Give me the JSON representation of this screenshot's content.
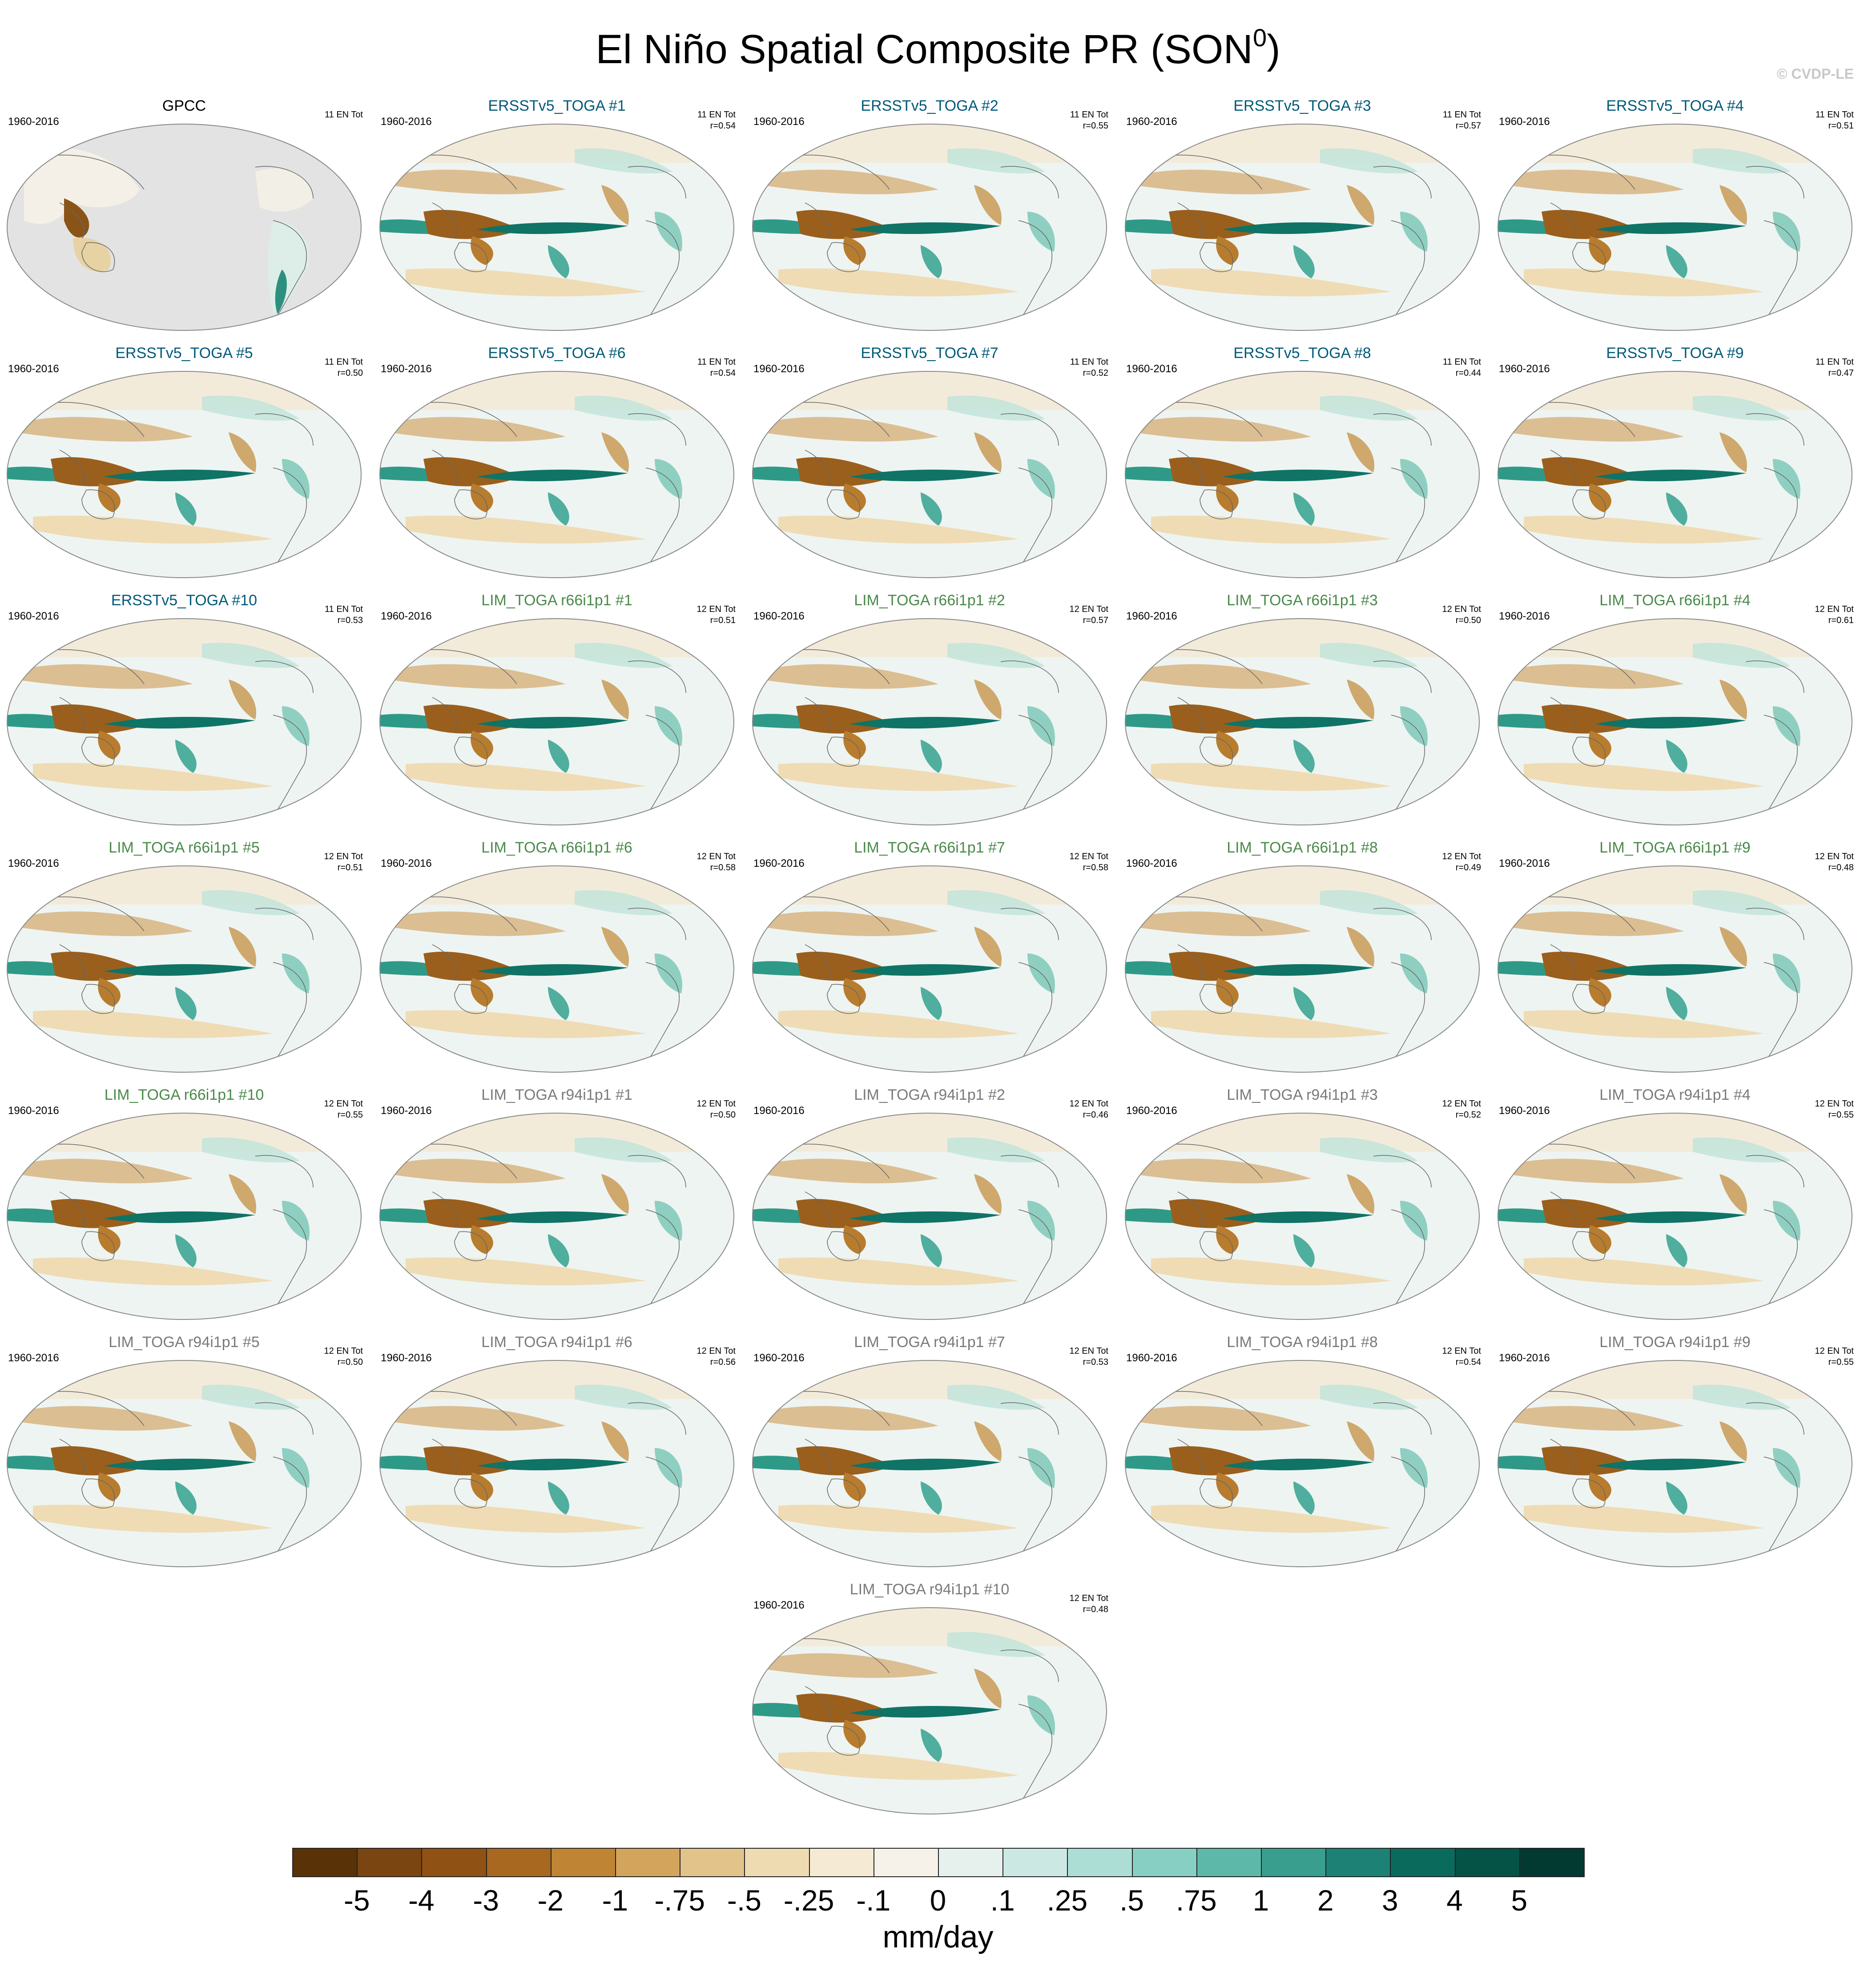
{
  "title": {
    "main": "El Niño Spatial Composite PR (SON",
    "superscript": "0",
    "close": ")"
  },
  "watermark": "© CVDP-LE",
  "colors": {
    "obs_label": "#000000",
    "ersst_label": "#005a78",
    "lim66_label": "#4a8a4a",
    "lim94_label": "#7a7a7a",
    "land_mask": "#e3e3e3"
  },
  "panels": [
    {
      "name": "GPCC",
      "period": "1960-2016",
      "count": "11 EN Tot",
      "r": "",
      "group": "obs"
    },
    {
      "name": "ERSSTv5_TOGA #1",
      "period": "1960-2016",
      "count": "11 EN Tot",
      "r": "r=0.54",
      "group": "ersst"
    },
    {
      "name": "ERSSTv5_TOGA #2",
      "period": "1960-2016",
      "count": "11 EN Tot",
      "r": "r=0.55",
      "group": "ersst"
    },
    {
      "name": "ERSSTv5_TOGA #3",
      "period": "1960-2016",
      "count": "11 EN Tot",
      "r": "r=0.57",
      "group": "ersst"
    },
    {
      "name": "ERSSTv5_TOGA #4",
      "period": "1960-2016",
      "count": "11 EN Tot",
      "r": "r=0.51",
      "group": "ersst"
    },
    {
      "name": "ERSSTv5_TOGA #5",
      "period": "1960-2016",
      "count": "11 EN Tot",
      "r": "r=0.50",
      "group": "ersst"
    },
    {
      "name": "ERSSTv5_TOGA #6",
      "period": "1960-2016",
      "count": "11 EN Tot",
      "r": "r=0.54",
      "group": "ersst"
    },
    {
      "name": "ERSSTv5_TOGA #7",
      "period": "1960-2016",
      "count": "11 EN Tot",
      "r": "r=0.52",
      "group": "ersst"
    },
    {
      "name": "ERSSTv5_TOGA #8",
      "period": "1960-2016",
      "count": "11 EN Tot",
      "r": "r=0.44",
      "group": "ersst"
    },
    {
      "name": "ERSSTv5_TOGA #9",
      "period": "1960-2016",
      "count": "11 EN Tot",
      "r": "r=0.47",
      "group": "ersst"
    },
    {
      "name": "ERSSTv5_TOGA #10",
      "period": "1960-2016",
      "count": "11 EN Tot",
      "r": "r=0.53",
      "group": "ersst"
    },
    {
      "name": "LIM_TOGA r66i1p1 #1",
      "period": "1960-2016",
      "count": "12 EN Tot",
      "r": "r=0.51",
      "group": "lim66"
    },
    {
      "name": "LIM_TOGA r66i1p1 #2",
      "period": "1960-2016",
      "count": "12 EN Tot",
      "r": "r=0.57",
      "group": "lim66"
    },
    {
      "name": "LIM_TOGA r66i1p1 #3",
      "period": "1960-2016",
      "count": "12 EN Tot",
      "r": "r=0.50",
      "group": "lim66"
    },
    {
      "name": "LIM_TOGA r66i1p1 #4",
      "period": "1960-2016",
      "count": "12 EN Tot",
      "r": "r=0.61",
      "group": "lim66"
    },
    {
      "name": "LIM_TOGA r66i1p1 #5",
      "period": "1960-2016",
      "count": "12 EN Tot",
      "r": "r=0.51",
      "group": "lim66"
    },
    {
      "name": "LIM_TOGA r66i1p1 #6",
      "period": "1960-2016",
      "count": "12 EN Tot",
      "r": "r=0.58",
      "group": "lim66"
    },
    {
      "name": "LIM_TOGA r66i1p1 #7",
      "period": "1960-2016",
      "count": "12 EN Tot",
      "r": "r=0.58",
      "group": "lim66"
    },
    {
      "name": "LIM_TOGA r66i1p1 #8",
      "period": "1960-2016",
      "count": "12 EN Tot",
      "r": "r=0.49",
      "group": "lim66"
    },
    {
      "name": "LIM_TOGA r66i1p1 #9",
      "period": "1960-2016",
      "count": "12 EN Tot",
      "r": "r=0.48",
      "group": "lim66"
    },
    {
      "name": "LIM_TOGA r66i1p1 #10",
      "period": "1960-2016",
      "count": "12 EN Tot",
      "r": "r=0.55",
      "group": "lim66"
    },
    {
      "name": "LIM_TOGA r94i1p1 #1",
      "period": "1960-2016",
      "count": "12 EN Tot",
      "r": "r=0.50",
      "group": "lim94"
    },
    {
      "name": "LIM_TOGA r94i1p1 #2",
      "period": "1960-2016",
      "count": "12 EN Tot",
      "r": "r=0.46",
      "group": "lim94"
    },
    {
      "name": "LIM_TOGA r94i1p1 #3",
      "period": "1960-2016",
      "count": "12 EN Tot",
      "r": "r=0.52",
      "group": "lim94"
    },
    {
      "name": "LIM_TOGA r94i1p1 #4",
      "period": "1960-2016",
      "count": "12 EN Tot",
      "r": "r=0.55",
      "group": "lim94"
    },
    {
      "name": "LIM_TOGA r94i1p1 #5",
      "period": "1960-2016",
      "count": "12 EN Tot",
      "r": "r=0.50",
      "group": "lim94"
    },
    {
      "name": "LIM_TOGA r94i1p1 #6",
      "period": "1960-2016",
      "count": "12 EN Tot",
      "r": "r=0.56",
      "group": "lim94"
    },
    {
      "name": "LIM_TOGA r94i1p1 #7",
      "period": "1960-2016",
      "count": "12 EN Tot",
      "r": "r=0.53",
      "group": "lim94"
    },
    {
      "name": "LIM_TOGA r94i1p1 #8",
      "period": "1960-2016",
      "count": "12 EN Tot",
      "r": "r=0.54",
      "group": "lim94"
    },
    {
      "name": "LIM_TOGA r94i1p1 #9",
      "period": "1960-2016",
      "count": "12 EN Tot",
      "r": "r=0.55",
      "group": "lim94"
    },
    {
      "name": "LIM_TOGA r94i1p1 #10",
      "period": "1960-2016",
      "count": "12 EN Tot",
      "r": "r=0.48",
      "group": "lim94"
    }
  ],
  "colorbar": {
    "units": "mm/day",
    "ticks": [
      "-5",
      "-4",
      "-3",
      "-2",
      "-1",
      "-.75",
      "-.5",
      "-.25",
      "-.1",
      "0",
      ".1",
      ".25",
      ".5",
      ".75",
      "1",
      "2",
      "3",
      "4",
      "5"
    ],
    "colors": [
      "#5a3208",
      "#7a4510",
      "#8f5214",
      "#a8681f",
      "#bf8434",
      "#d2a45c",
      "#e2c48a",
      "#eedbb1",
      "#f5ead3",
      "#f6f1e9",
      "#e6f1ee",
      "#cbe9e2",
      "#acded5",
      "#86cfc2",
      "#5eb8aa",
      "#3a9e8e",
      "#1d8275",
      "#0a6a5c",
      "#055246",
      "#023a31"
    ]
  }
}
